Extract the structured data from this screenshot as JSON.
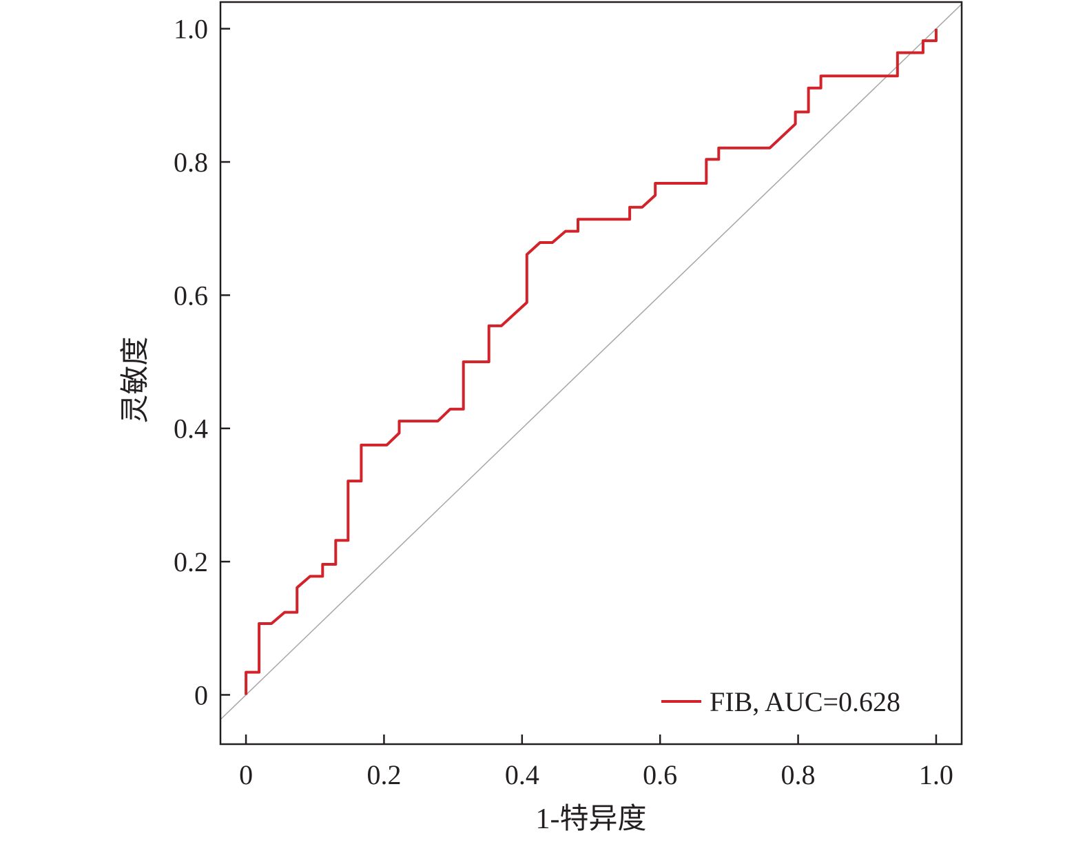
{
  "chart_data": {
    "type": "line",
    "title": "",
    "xlabel": "1-特异度",
    "ylabel": "灵敏度",
    "xlim": [
      -0.037,
      1.037
    ],
    "ylim": [
      -0.074,
      1.04
    ],
    "xticks": [
      0,
      0.2,
      0.4,
      0.6,
      0.8,
      1.0
    ],
    "xtick_labels": [
      "0",
      "0.2",
      "0.4",
      "0.6",
      "0.8",
      "1.0"
    ],
    "yticks": [
      0,
      0.2,
      0.4,
      0.6,
      0.8,
      1.0
    ],
    "ytick_labels": [
      "0",
      "0.2",
      "0.4",
      "0.6",
      "0.8",
      "1.0"
    ],
    "grid": false,
    "legend_position": "bottom-right",
    "reference_line": {
      "x": [
        -0.037,
        1.037
      ],
      "y": [
        -0.037,
        1.037
      ],
      "color": "#a6a6a6"
    },
    "series": [
      {
        "name": "FIB, AUC=0.628",
        "color": "#d2232a",
        "x": [
          0,
          0,
          0.019,
          0.019,
          0.037,
          0.056,
          0.074,
          0.074,
          0.093,
          0.111,
          0.111,
          0.13,
          0.13,
          0.148,
          0.148,
          0.167,
          0.167,
          0.204,
          0.222,
          0.222,
          0.278,
          0.296,
          0.315,
          0.315,
          0.352,
          0.352,
          0.37,
          0.407,
          0.407,
          0.426,
          0.444,
          0.463,
          0.481,
          0.481,
          0.556,
          0.556,
          0.574,
          0.593,
          0.593,
          0.667,
          0.667,
          0.685,
          0.685,
          0.759,
          0.796,
          0.796,
          0.815,
          0.815,
          0.833,
          0.833,
          0.944,
          0.944,
          0.981,
          0.981,
          1.0,
          1.0
        ],
        "y": [
          0,
          0.034,
          0.034,
          0.107,
          0.107,
          0.124,
          0.124,
          0.161,
          0.178,
          0.178,
          0.196,
          0.196,
          0.232,
          0.232,
          0.321,
          0.321,
          0.375,
          0.375,
          0.393,
          0.411,
          0.411,
          0.429,
          0.429,
          0.5,
          0.5,
          0.554,
          0.554,
          0.589,
          0.661,
          0.679,
          0.679,
          0.696,
          0.696,
          0.714,
          0.714,
          0.732,
          0.732,
          0.75,
          0.768,
          0.768,
          0.804,
          0.804,
          0.821,
          0.821,
          0.857,
          0.875,
          0.875,
          0.911,
          0.911,
          0.929,
          0.929,
          0.964,
          0.964,
          0.982,
          0.982,
          1.0
        ]
      }
    ]
  }
}
